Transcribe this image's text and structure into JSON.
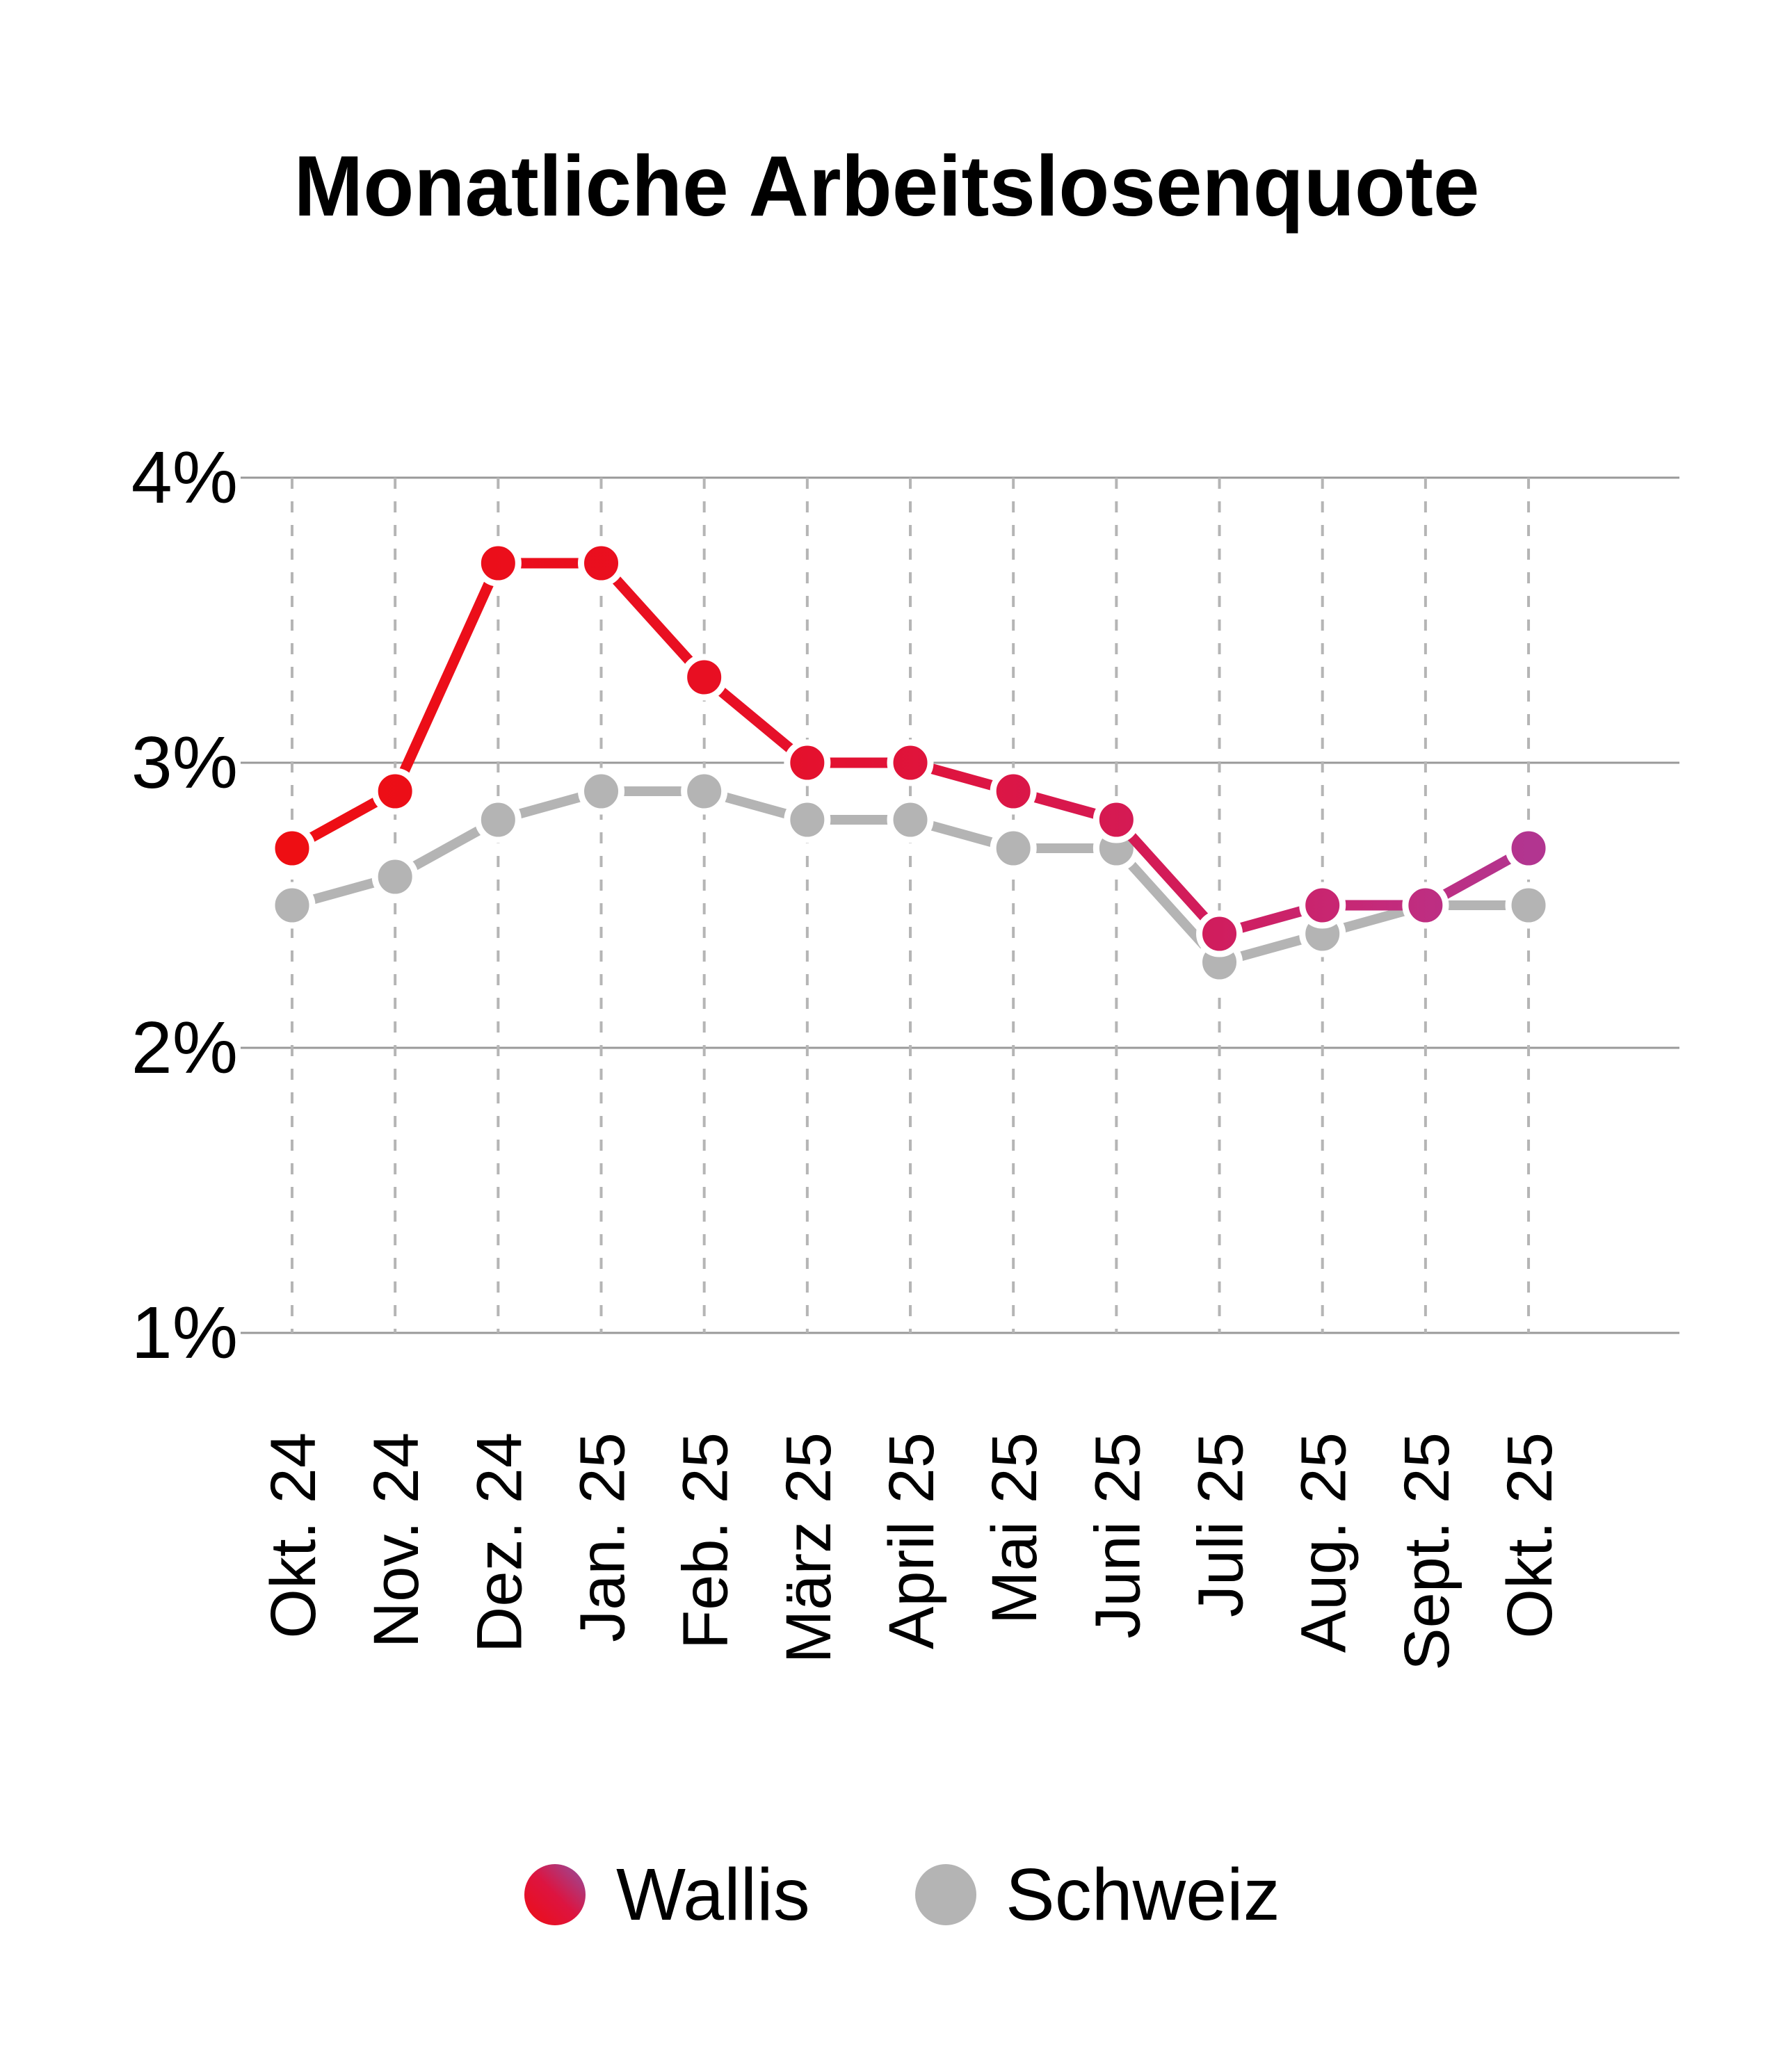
{
  "chart_data": {
    "type": "line",
    "title": "Monatliche Arbeitslosenquote",
    "categories": [
      "Okt. 24",
      "Nov. 24",
      "Dez. 24",
      "Jan. 25",
      "Feb. 25",
      "März 25",
      "April 25",
      "Mai 25",
      "Juni 25",
      "Juli 25",
      "Aug. 25",
      "Sept. 25",
      "Okt. 25"
    ],
    "series": [
      {
        "name": "Wallis",
        "values": [
          2.7,
          2.9,
          3.7,
          3.7,
          3.3,
          3.0,
          3.0,
          2.9,
          2.8,
          2.4,
          2.5,
          2.5,
          2.7
        ],
        "color_gradient_stops": [
          {
            "offset": 0.0,
            "color": "#ee0e13"
          },
          {
            "offset": 0.35,
            "color": "#e80f23"
          },
          {
            "offset": 0.55,
            "color": "#dd1542"
          },
          {
            "offset": 0.75,
            "color": "#d01d5e"
          },
          {
            "offset": 0.88,
            "color": "#c42a7a"
          },
          {
            "offset": 1.0,
            "color": "#b23590"
          }
        ],
        "legend_gradient_stops": [
          {
            "offset": 0.0,
            "color": "#ee0d14"
          },
          {
            "offset": 0.5,
            "color": "#dd1440"
          },
          {
            "offset": 1.0,
            "color": "#9150a0"
          }
        ]
      },
      {
        "name": "Schweiz",
        "values": [
          2.5,
          2.6,
          2.8,
          2.9,
          2.9,
          2.8,
          2.8,
          2.7,
          2.7,
          2.3,
          2.4,
          2.5,
          2.5
        ],
        "color": "#b4b4b4"
      }
    ],
    "y_ticks": [
      {
        "label": "4%",
        "value": 4
      },
      {
        "label": "3%",
        "value": 3
      },
      {
        "label": "2%",
        "value": 2
      },
      {
        "label": "1%",
        "value": 1
      }
    ],
    "ylim": [
      1,
      4
    ],
    "grid": {
      "horizontal": "solid",
      "vertical": "dashed"
    },
    "legend_position": "bottom",
    "colors": {
      "h_gridline": "#999999",
      "v_gridline": "#b5b5b5",
      "text": "#000000",
      "background": "#ffffff"
    }
  }
}
